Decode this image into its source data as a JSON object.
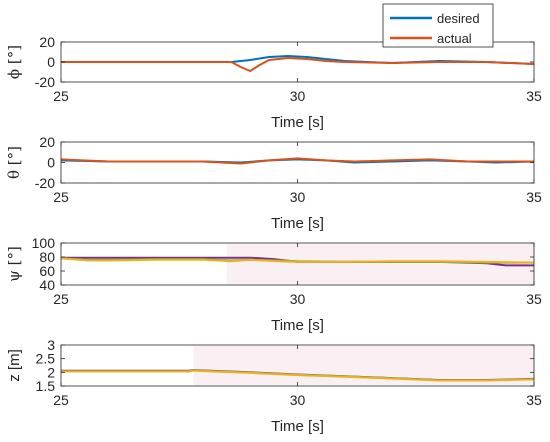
{
  "colors": {
    "desired": "#0072BD",
    "actual": "#D95319",
    "purple": "#7E2F8E",
    "olive": "#77AC30",
    "gold": "#EDB120",
    "shade": "#f5dde6"
  },
  "legend": [
    {
      "label": "desired",
      "color": "#0072BD"
    },
    {
      "label": "actual",
      "color": "#D95319"
    }
  ],
  "chart_data": [
    {
      "type": "line",
      "ylabel": "ϕ [°]",
      "xlabel": "Time [s]",
      "xlim": [
        25,
        35
      ],
      "ylim": [
        -20,
        20
      ],
      "xticks": [
        25,
        30,
        35
      ],
      "yticks": [
        -20,
        0,
        20
      ],
      "series": [
        {
          "name": "desired",
          "color": "#0072BD",
          "x": [
            25,
            26,
            27,
            28,
            28.6,
            29,
            29.4,
            29.8,
            30.2,
            30.6,
            31,
            32,
            33,
            34,
            35
          ],
          "y": [
            0,
            0,
            0,
            0,
            0,
            2,
            5,
            6,
            5,
            3,
            1,
            -1,
            1,
            0,
            -2
          ]
        },
        {
          "name": "actual",
          "color": "#D95319",
          "x": [
            25,
            26,
            27,
            28,
            28.6,
            28.8,
            29,
            29.2,
            29.4,
            29.8,
            30.2,
            30.6,
            31,
            32,
            33,
            34,
            35
          ],
          "y": [
            0,
            0,
            0,
            0,
            0,
            -5,
            -9,
            -3,
            2,
            4,
            3,
            1,
            0,
            -1,
            0,
            0,
            -2
          ]
        }
      ]
    },
    {
      "type": "line",
      "ylabel": "θ [°]",
      "xlabel": "Time [s]",
      "xlim": [
        25,
        35
      ],
      "ylim": [
        -20,
        20
      ],
      "xticks": [
        25,
        30,
        35
      ],
      "yticks": [
        -20,
        0,
        20
      ],
      "series": [
        {
          "color": "#0072BD",
          "x": [
            25,
            26,
            27,
            28,
            28.8,
            29.4,
            30,
            30.6,
            31.2,
            32,
            32.8,
            33.6,
            34.2,
            35
          ],
          "y": [
            2,
            1,
            1,
            1,
            0,
            2,
            3,
            2,
            0,
            1,
            2,
            1,
            0,
            1
          ]
        },
        {
          "color": "#D95319",
          "x": [
            25,
            26,
            27,
            28,
            28.8,
            29.4,
            30,
            30.6,
            31.2,
            32,
            32.8,
            33.6,
            34.2,
            35
          ],
          "y": [
            3,
            1,
            1,
            1,
            -1,
            2,
            4,
            2,
            1,
            2,
            3,
            1,
            1,
            1
          ]
        }
      ]
    },
    {
      "type": "line",
      "ylabel": "ψ [°]",
      "xlabel": "Time [s]",
      "xlim": [
        25,
        35
      ],
      "ylim": [
        40,
        100
      ],
      "xticks": [
        25,
        30,
        35
      ],
      "yticks": [
        40,
        60,
        80,
        100
      ],
      "series": [
        {
          "color": "#7E2F8E",
          "x": [
            25,
            26,
            27,
            28,
            29,
            29.5,
            30,
            31,
            32,
            33,
            34,
            34.4,
            35
          ],
          "y": [
            79,
            79,
            79,
            79,
            79,
            77,
            73,
            73,
            73,
            73,
            71,
            68,
            68
          ]
        },
        {
          "color": "#77AC30",
          "x": [
            25,
            25.6,
            26,
            27,
            28,
            28.6,
            29,
            29.6,
            30,
            31,
            32,
            33,
            34,
            35
          ],
          "y": [
            78,
            76,
            76,
            77,
            77,
            75,
            76,
            75,
            74,
            73,
            73,
            73,
            72,
            72
          ]
        },
        {
          "color": "#EDB120",
          "x": [
            25,
            25.6,
            26,
            27,
            28,
            28.6,
            29,
            29.6,
            30,
            31,
            32,
            33,
            34,
            35
          ],
          "y": [
            78,
            75,
            75,
            76,
            76,
            74,
            76,
            74,
            73,
            73,
            74,
            74,
            73,
            72
          ]
        }
      ]
    },
    {
      "type": "line",
      "ylabel": "z [m]",
      "xlabel": "Time [s]",
      "xlim": [
        25,
        35
      ],
      "ylim": [
        1.5,
        3
      ],
      "xticks": [
        25,
        30,
        35
      ],
      "yticks": [
        1.5,
        2,
        2.5,
        3
      ],
      "series": [
        {
          "color": "#7E2F8E",
          "x": [
            25,
            27,
            27.7,
            27.8,
            29,
            30,
            31,
            32,
            33,
            34,
            35
          ],
          "y": [
            2.06,
            2.06,
            2.06,
            2.08,
            2.0,
            1.92,
            1.86,
            1.79,
            1.72,
            1.72,
            1.76
          ]
        },
        {
          "color": "#77AC30",
          "x": [
            25,
            27,
            27.7,
            27.8,
            29,
            30,
            31,
            32,
            33,
            34,
            35
          ],
          "y": [
            2.04,
            2.04,
            2.04,
            2.07,
            1.99,
            1.91,
            1.85,
            1.78,
            1.71,
            1.71,
            1.75
          ]
        },
        {
          "color": "#EDB120",
          "x": [
            25,
            27,
            27.7,
            27.8,
            29,
            30,
            31,
            32,
            33,
            34,
            35
          ],
          "y": [
            2.03,
            2.03,
            2.03,
            2.06,
            1.98,
            1.9,
            1.84,
            1.77,
            1.7,
            1.7,
            1.74
          ]
        }
      ]
    }
  ]
}
